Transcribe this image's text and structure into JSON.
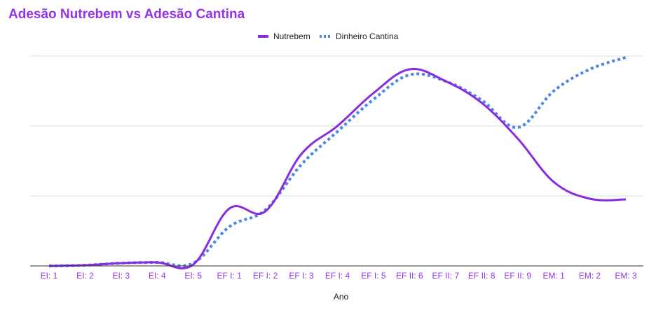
{
  "chart_data": {
    "type": "line",
    "title": "Adesão Nutrebem vs Adesão Cantina",
    "xlabel": "Ano",
    "ylabel": "",
    "categories": [
      "EI: 1",
      "EI: 2",
      "EI: 3",
      "EI: 4",
      "EI: 5",
      "EF I: 1",
      "EF I: 2",
      "EF I: 3",
      "EF I: 4",
      "EF I: 5",
      "EF II: 6",
      "EF II: 7",
      "EF II: 8",
      "EF II: 9",
      "EM: 1",
      "EM: 2",
      "EM: 3"
    ],
    "ylim": [
      0,
      300
    ],
    "gridlines": [
      100,
      200,
      300
    ],
    "legend_position": "top-center",
    "series": [
      {
        "name": "Nutrebem",
        "style": "solid",
        "color": "#8a2be2",
        "values": [
          0,
          1,
          4,
          5,
          2,
          82,
          78,
          160,
          200,
          247,
          281,
          264,
          233,
          182,
          120,
          96,
          95
        ]
      },
      {
        "name": "Dinheiro Cantina",
        "style": "dotted",
        "color": "#4a86e8",
        "values": [
          0,
          1,
          4,
          5,
          4,
          56,
          80,
          145,
          192,
          238,
          273,
          264,
          237,
          198,
          250,
          281,
          298
        ]
      }
    ]
  },
  "colors": {
    "title": "#9334e6",
    "tick_labels": "#9334e6",
    "gridline": "#c6e4df",
    "baseline": "#333333"
  }
}
